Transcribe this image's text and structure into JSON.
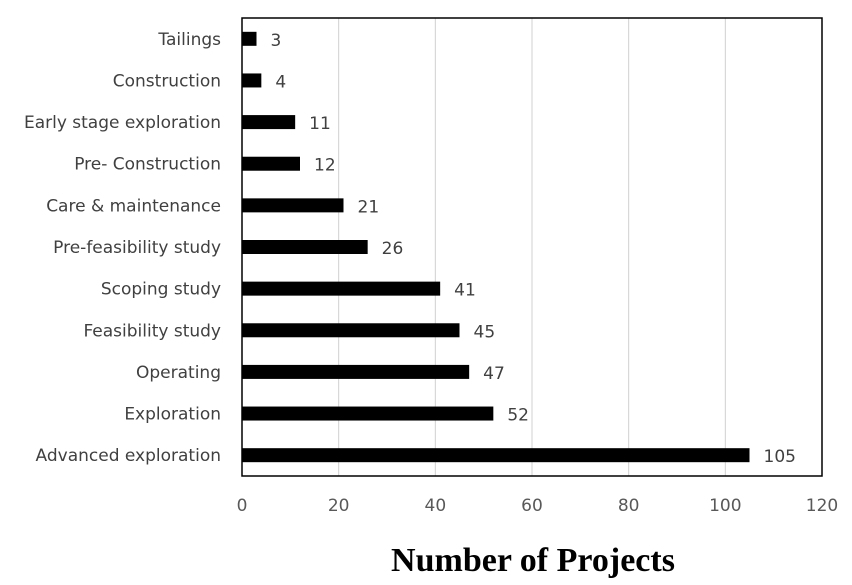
{
  "chart_data": {
    "type": "bar",
    "orientation": "horizontal",
    "categories": [
      "Tailings",
      "Construction",
      "Early stage exploration",
      "Pre- Construction",
      "Care & maintenance",
      "Pre-feasibility study",
      "Scoping study",
      "Feasibility study",
      "Operating",
      "Exploration",
      "Advanced exploration"
    ],
    "values": [
      3,
      4,
      11,
      12,
      21,
      26,
      41,
      45,
      47,
      52,
      105
    ],
    "xlabel": "Number of Projects",
    "ylabel": "",
    "xlim": [
      0,
      120
    ],
    "x_ticks": [
      0,
      20,
      40,
      60,
      80,
      100,
      120
    ],
    "bar_color": "#000000",
    "grid": "vertical",
    "data_labels": true,
    "legend": "none"
  }
}
